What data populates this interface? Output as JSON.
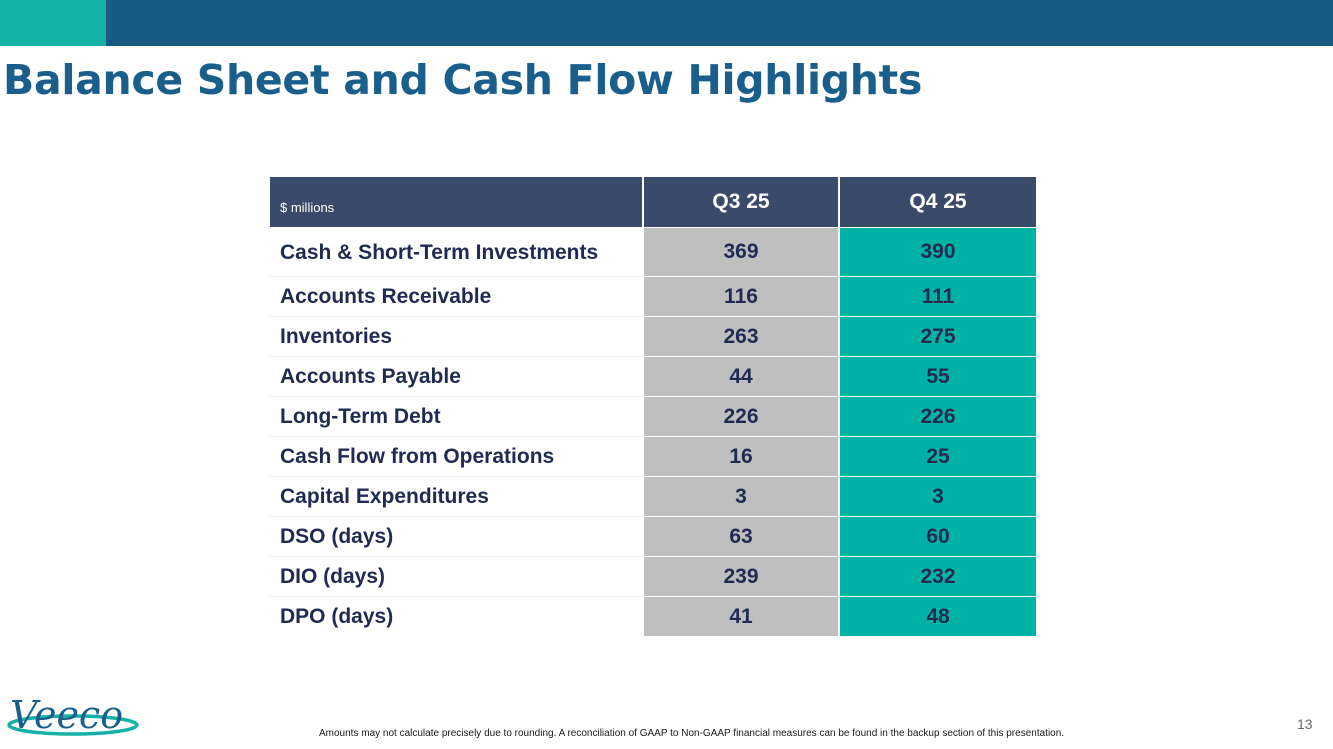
{
  "slide": {
    "title": "Balance Sheet and Cash Flow Highlights",
    "page_number": "13",
    "footnote": "Amounts may not calculate precisely due to rounding.  A reconciliation of GAAP to Non-GAAP financial measures can be found in the backup section of this presentation.",
    "logo_text": "Veeco"
  },
  "colors": {
    "brand_blue": "#155b82",
    "accent_teal": "#14b1a6",
    "header_navy": "#394a6b",
    "q3_grey": "#bfbfbf",
    "q4_teal": "#00b2a6"
  },
  "table": {
    "unit_label": "$ millions",
    "columns": [
      "Q3 25",
      "Q4 25"
    ],
    "rows": [
      {
        "label": "Cash & Short-Term Investments",
        "q3": "369",
        "q4": "390"
      },
      {
        "label": "Accounts Receivable",
        "q3": "116",
        "q4": "111"
      },
      {
        "label": "Inventories",
        "q3": "263",
        "q4": "275"
      },
      {
        "label": "Accounts Payable",
        "q3": "44",
        "q4": "55"
      },
      {
        "label": "Long-Term Debt",
        "q3": "226",
        "q4": "226"
      },
      {
        "label": "Cash Flow from Operations",
        "q3": "16",
        "q4": "25"
      },
      {
        "label": "Capital Expenditures",
        "q3": "3",
        "q4": "3"
      },
      {
        "label": "DSO (days)",
        "q3": "63",
        "q4": "60"
      },
      {
        "label": "DIO (days)",
        "q3": "239",
        "q4": "232"
      },
      {
        "label": "DPO (days)",
        "q3": "41",
        "q4": "48"
      }
    ]
  }
}
